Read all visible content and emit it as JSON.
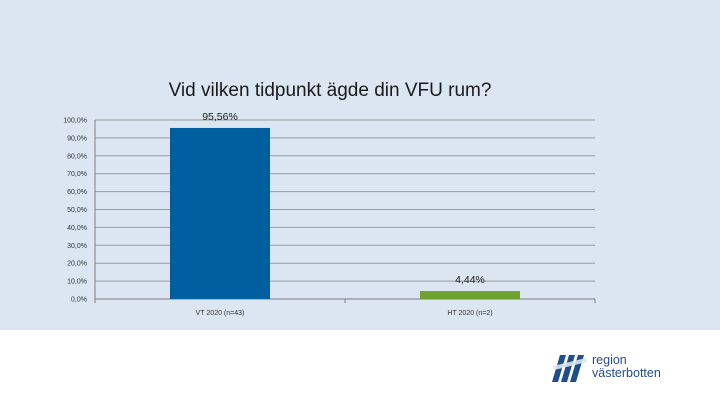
{
  "chart_data": {
    "type": "bar",
    "title": "Vid vilken tidpunkt ägde din VFU rum?",
    "categories": [
      "VT 2020 (n=43)",
      "HT 2020 (n=2)"
    ],
    "values": [
      95.56,
      4.44
    ],
    "value_labels": [
      "95,56%",
      "4,44%"
    ],
    "bar_colors": [
      "#005f9e",
      "#6ea22e"
    ],
    "ylim": [
      0,
      100
    ],
    "yticks": [
      0,
      10,
      20,
      30,
      40,
      50,
      60,
      70,
      80,
      90,
      100
    ],
    "ytick_labels": [
      "0,0%",
      "10,0%",
      "20,0%",
      "30,0%",
      "40,0%",
      "50,0%",
      "60,0%",
      "70,0%",
      "80,0%",
      "90,0%",
      "100,0%"
    ],
    "xlabel": "",
    "ylabel": "",
    "grid": true,
    "legend": "none"
  },
  "logo": {
    "line1": "region",
    "line2": "västerbotten",
    "color": "#1f4e8c"
  },
  "colors": {
    "background": "#dce6f2",
    "gridline": "#9a9a9a"
  }
}
